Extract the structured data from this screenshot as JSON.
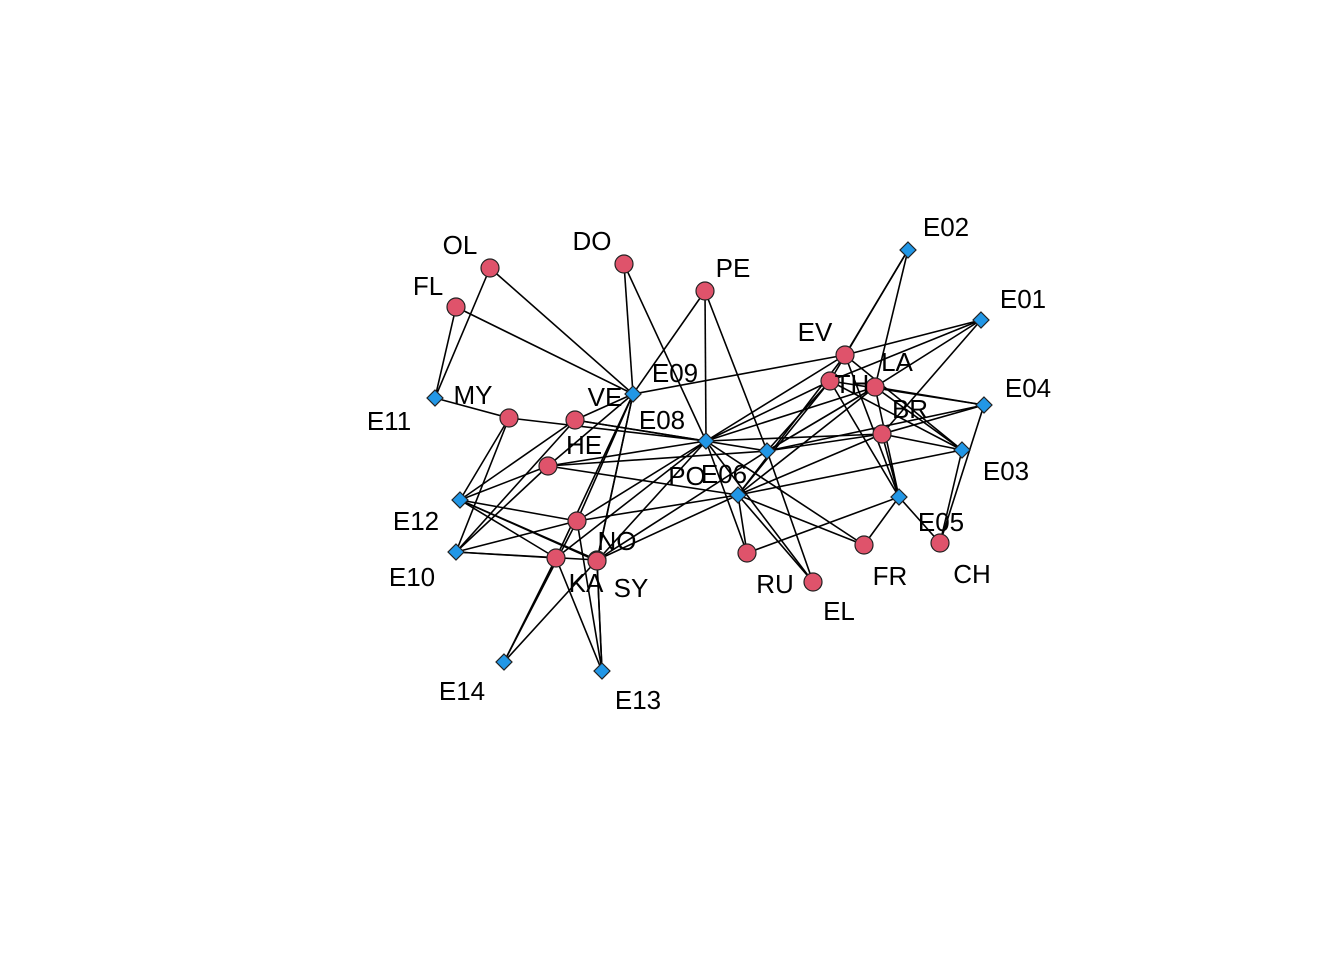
{
  "colors": {
    "person": "#DF536B",
    "event": "#2297E6",
    "edge": "#000000"
  },
  "people": [
    {
      "id": "OL",
      "label": "OL"
    },
    {
      "id": "FL",
      "label": "FL"
    },
    {
      "id": "DO",
      "label": "DO"
    },
    {
      "id": "PE",
      "label": "PE"
    },
    {
      "id": "EV",
      "label": "EV"
    },
    {
      "id": "TH",
      "label": "TH"
    },
    {
      "id": "LA",
      "label": "LA"
    },
    {
      "id": "BR",
      "label": "BR"
    },
    {
      "id": "MY",
      "label": "MY"
    },
    {
      "id": "VE",
      "label": "VE"
    },
    {
      "id": "HE",
      "label": "HE"
    },
    {
      "id": "PO",
      "label": "PO"
    },
    {
      "id": "NO",
      "label": "NO"
    },
    {
      "id": "KA",
      "label": "KA"
    },
    {
      "id": "SY",
      "label": "SY"
    },
    {
      "id": "RU",
      "label": "RU"
    },
    {
      "id": "EL",
      "label": "EL"
    },
    {
      "id": "FR",
      "label": "FR"
    },
    {
      "id": "CH",
      "label": "CH"
    }
  ],
  "events": [
    {
      "id": "E01",
      "label": "E01"
    },
    {
      "id": "E02",
      "label": "E02"
    },
    {
      "id": "E03",
      "label": "E03"
    },
    {
      "id": "E04",
      "label": "E04"
    },
    {
      "id": "E05",
      "label": "E05"
    },
    {
      "id": "E06",
      "label": "E06"
    },
    {
      "id": "E07",
      "label": ""
    },
    {
      "id": "E08",
      "label": "E08"
    },
    {
      "id": "E09",
      "label": "E09"
    },
    {
      "id": "E10",
      "label": "E10"
    },
    {
      "id": "E11",
      "label": "E11"
    },
    {
      "id": "E12",
      "label": "E12"
    },
    {
      "id": "E13",
      "label": "E13"
    },
    {
      "id": "E14",
      "label": "E14"
    }
  ],
  "edges": [
    [
      "OL",
      "E09"
    ],
    [
      "OL",
      "E11"
    ],
    [
      "FL",
      "E09"
    ],
    [
      "FL",
      "E11"
    ],
    [
      "DO",
      "E09"
    ],
    [
      "DO",
      "E08"
    ],
    [
      "PE",
      "E09"
    ],
    [
      "PE",
      "E08"
    ],
    [
      "PE",
      "E07"
    ],
    [
      "EV",
      "E01"
    ],
    [
      "EV",
      "E02"
    ],
    [
      "EV",
      "E03"
    ],
    [
      "EV",
      "E05"
    ],
    [
      "EV",
      "E06"
    ],
    [
      "EV",
      "E08"
    ],
    [
      "EV",
      "E09"
    ],
    [
      "TH",
      "E01"
    ],
    [
      "TH",
      "E02"
    ],
    [
      "TH",
      "E03"
    ],
    [
      "TH",
      "E04"
    ],
    [
      "TH",
      "E05"
    ],
    [
      "TH",
      "E07"
    ],
    [
      "TH",
      "E08"
    ],
    [
      "TH",
      "E06"
    ],
    [
      "LA",
      "E01"
    ],
    [
      "LA",
      "E02"
    ],
    [
      "LA",
      "E03"
    ],
    [
      "LA",
      "E04"
    ],
    [
      "LA",
      "E05"
    ],
    [
      "LA",
      "E06"
    ],
    [
      "LA",
      "E07"
    ],
    [
      "LA",
      "E08"
    ],
    [
      "BR",
      "E01"
    ],
    [
      "BR",
      "E03"
    ],
    [
      "BR",
      "E04"
    ],
    [
      "BR",
      "E05"
    ],
    [
      "BR",
      "E06"
    ],
    [
      "BR",
      "E07"
    ],
    [
      "BR",
      "E08"
    ],
    [
      "MY",
      "E11"
    ],
    [
      "MY",
      "E12"
    ],
    [
      "MY",
      "E10"
    ],
    [
      "MY",
      "E08"
    ],
    [
      "VE",
      "E09"
    ],
    [
      "VE",
      "E08"
    ],
    [
      "VE",
      "E10"
    ],
    [
      "VE",
      "E12"
    ],
    [
      "VE",
      "E07"
    ],
    [
      "HE",
      "E09"
    ],
    [
      "HE",
      "E08"
    ],
    [
      "HE",
      "E12"
    ],
    [
      "HE",
      "E10"
    ],
    [
      "HE",
      "E06"
    ],
    [
      "HE",
      "E07"
    ],
    [
      "PO",
      "E06"
    ],
    [
      "PO",
      "E08"
    ],
    [
      "PO",
      "E09"
    ],
    [
      "PO",
      "E10"
    ],
    [
      "PO",
      "E12"
    ],
    [
      "PO",
      "E13"
    ],
    [
      "PO",
      "E14"
    ],
    [
      "NO",
      "E06"
    ],
    [
      "NO",
      "E09"
    ],
    [
      "NO",
      "E10"
    ],
    [
      "NO",
      "E12"
    ],
    [
      "NO",
      "E13"
    ],
    [
      "NO",
      "E14"
    ],
    [
      "NO",
      "E07"
    ],
    [
      "KA",
      "E09"
    ],
    [
      "KA",
      "E10"
    ],
    [
      "KA",
      "E12"
    ],
    [
      "KA",
      "E13"
    ],
    [
      "KA",
      "E14"
    ],
    [
      "KA",
      "E08"
    ],
    [
      "SY",
      "E09"
    ],
    [
      "SY",
      "E13"
    ],
    [
      "SY",
      "E12"
    ],
    [
      "SY",
      "E08"
    ],
    [
      "RU",
      "E05"
    ],
    [
      "RU",
      "E08"
    ],
    [
      "RU",
      "E06"
    ],
    [
      "EL",
      "E06"
    ],
    [
      "EL",
      "E08"
    ],
    [
      "EL",
      "E07"
    ],
    [
      "FR",
      "E05"
    ],
    [
      "FR",
      "E08"
    ],
    [
      "FR",
      "E06"
    ],
    [
      "CH",
      "E03"
    ],
    [
      "CH",
      "E04"
    ],
    [
      "CH",
      "E05"
    ],
    [
      "E07",
      "E04"
    ],
    [
      "E06",
      "E03"
    ]
  ]
}
